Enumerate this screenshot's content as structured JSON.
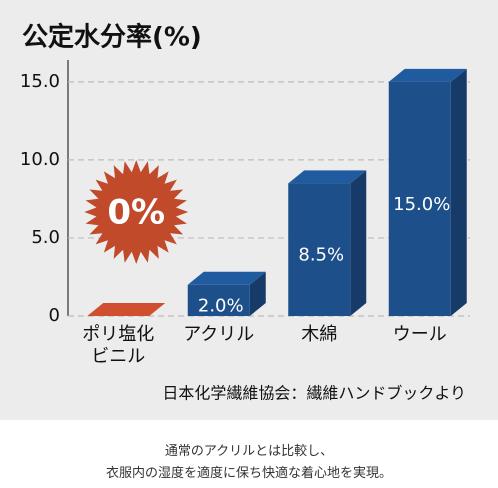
{
  "chart_data": {
    "type": "bar3d",
    "title": "公定水分率(%)",
    "categories": [
      "ポリ塩化ビニル",
      "アクリル",
      "木綿",
      "ウール"
    ],
    "values": [
      0,
      2.0,
      8.5,
      15.0
    ],
    "value_labels": [
      "0%",
      "2.0%",
      "8.5%",
      "15.0%"
    ],
    "colors": [
      "#b5452b",
      "#1d4f8a",
      "#1d4f8a",
      "#1d4f8a"
    ],
    "ylim": [
      0,
      16.4
    ],
    "yticks": [
      0,
      {
        "value": 5,
        "label": "5.0"
      },
      {
        "value": 10,
        "label": "10.0"
      },
      {
        "value": 15,
        "label": "15.0"
      }
    ],
    "grid": true,
    "source": "日本化学繊維協会：繊維ハンドブックより"
  },
  "caption": [
    "通常のアクリルとは比較し、",
    "衣服内の湿度を適度に保ち快適な着心地を実現。"
  ]
}
